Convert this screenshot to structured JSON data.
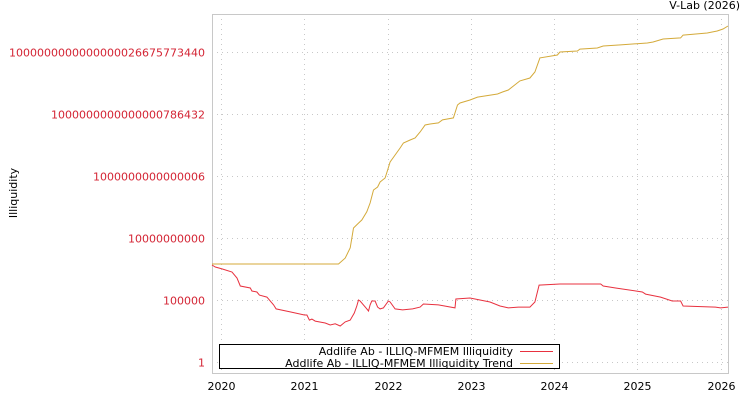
{
  "chart_data": {
    "type": "line",
    "title": "V-Lab (2026)",
    "xlabel": "",
    "ylabel": "Illiquidity",
    "yscale": "log",
    "xlim": [
      2019.89,
      2026.09
    ],
    "ylim": [
      0.13,
      1.15e+28
    ],
    "grid": true,
    "legend_position": "bottom-left",
    "xticks": {
      "values": [
        2020,
        2021,
        2022,
        2023,
        2024,
        2025,
        2026
      ],
      "labels": [
        "2020",
        "2021",
        "2022",
        "2023",
        "2024",
        "2025",
        "2026"
      ]
    },
    "yticks": {
      "values": [
        1,
        100000.0,
        10000000000.0,
        1000000000000000.0,
        1e+20,
        1e+25
      ],
      "labels": [
        "1",
        "100000",
        "10000000000",
        "1000000000000006",
        "1000000000000000786432",
        "1000000000000000026675773440"
      ]
    },
    "series": [
      {
        "name": "Addlife Ab - ILLIQ-MFMEM Illiquidity",
        "color": "#e8313f",
        "x": [
          2019.89,
          2019.93,
          2020.01,
          2020.13,
          2020.19,
          2020.23,
          2020.35,
          2020.37,
          2020.43,
          2020.46,
          2020.55,
          2020.63,
          2020.66,
          2020.83,
          2021.0,
          2021.03,
          2021.06,
          2021.09,
          2021.13,
          2021.25,
          2021.31,
          2021.37,
          2021.43,
          2021.49,
          2021.55,
          2021.6,
          2021.63,
          2021.65,
          2021.67,
          2021.74,
          2021.77,
          2021.79,
          2021.81,
          2021.85,
          2021.88,
          2021.91,
          2021.95,
          2022.01,
          2022.03,
          2022.09,
          2022.18,
          2022.3,
          2022.39,
          2022.43,
          2022.61,
          2022.81,
          2022.82,
          2022.99,
          2023.23,
          2023.35,
          2023.45,
          2023.57,
          2023.71,
          2023.77,
          2023.82,
          2024.07,
          2024.56,
          2024.59,
          2024.74,
          2025.06,
          2025.1,
          2025.28,
          2025.42,
          2025.52,
          2025.55,
          2025.94,
          2026.0,
          2026.09
        ],
        "y": [
          66000000.0,
          46000000.0,
          32000000.0,
          18000000.0,
          5900000.0,
          1350000.0,
          930000.0,
          530000.0,
          440000.0,
          250000.0,
          170000.0,
          40000.0,
          19000.0,
          11000.0,
          6200.0,
          6200.0,
          2400.0,
          2900.0,
          2000.0,
          1400.0,
          960.0,
          1200.0,
          800.0,
          1700.0,
          2400.0,
          8900.0,
          33000.0,
          100000.0,
          83000.0,
          23000.0,
          13000.0,
          40000.0,
          83000.0,
          83000.0,
          27000.0,
          19000.0,
          23000.0,
          83000.0,
          69000.0,
          19000.0,
          16000.0,
          19000.0,
          27000.0,
          48000.0,
          40000.0,
          23000.0,
          120000.0,
          145000.0,
          69000.0,
          33000.0,
          23000.0,
          27000.0,
          27000.0,
          69000.0,
          1600000.0,
          1950000.0,
          1950000.0,
          1350000.0,
          930000.0,
          440000.0,
          300000.0,
          170000.0,
          83000.0,
          83000.0,
          33000.0,
          27000.0,
          23000.0,
          27000.0
        ]
      },
      {
        "name": "Addlife Ab - ILLIQ-MFMEM Illiquidity Trend",
        "color": "#d4aa3a",
        "x": [
          2019.89,
          2021.41,
          2021.49,
          2021.55,
          2021.59,
          2021.65,
          2021.69,
          2021.75,
          2021.79,
          2021.83,
          2021.88,
          2021.91,
          2021.97,
          2022.0,
          2022.03,
          2022.09,
          2022.15,
          2022.19,
          2022.27,
          2022.33,
          2022.39,
          2022.45,
          2022.51,
          2022.61,
          2022.66,
          2022.79,
          2022.84,
          2022.87,
          2022.99,
          2023.08,
          2023.32,
          2023.38,
          2023.45,
          2023.59,
          2023.71,
          2023.77,
          2023.83,
          2024.04,
          2024.07,
          2024.28,
          2024.31,
          2024.52,
          2024.59,
          2024.8,
          2025.12,
          2025.19,
          2025.31,
          2025.52,
          2025.55,
          2025.84,
          2025.96,
          2026.03,
          2026.09
        ],
        "y": [
          80000000.0,
          80000000.0,
          240000000.0,
          1600000000.0,
          64000000000.0,
          160000000000.0,
          280000000000.0,
          1300000000000.0,
          6600000000000.0,
          74000000000000.0,
          130000000000000.0,
          330000000000000.0,
          690000000000000.0,
          3000000000000000.0,
          1.35e+16,
          4.9e+16,
          1.8e+17,
          4.6e+17,
          8e+17,
          1.15e+18,
          3.5e+18,
          1.3e+19,
          1.55e+19,
          1.9e+19,
          3.3e+19,
          4.8e+19,
          5.3e+20,
          7.7e+20,
          1.35e+21,
          2.3e+21,
          4.1e+21,
          5.9e+21,
          8.6e+21,
          4.6e+22,
          8e+22,
          2.4e+23,
          3.3e+24,
          5.7e+24,
          1e+25,
          1.2e+25,
          1.7e+25,
          2.1e+25,
          3e+25,
          3.7e+25,
          5.3e+25,
          6.4e+25,
          1.1e+26,
          1.35e+26,
          2.3e+26,
          3.4e+26,
          4.9e+26,
          7.1e+26,
          1.25e+27
        ]
      }
    ]
  }
}
